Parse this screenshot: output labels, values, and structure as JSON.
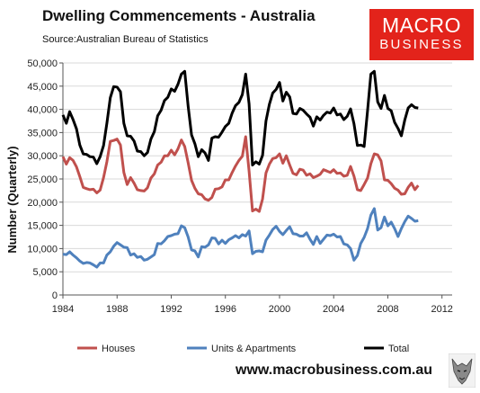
{
  "header": {
    "title": "Dwelling Commencements - Australia",
    "subtitle": "Source:Australian Bureau of Statistics"
  },
  "logo": {
    "line1": "MACRO",
    "line2": "BUSINESS"
  },
  "footer": {
    "url": "www.macrobusiness.com.au"
  },
  "colors": {
    "houses": "#c0504d",
    "units": "#4f81bd",
    "total": "#000000",
    "logo_bg": "#e3231b"
  },
  "chart_data": {
    "type": "line",
    "ylabel": "Number (Quarterly)",
    "xlabel": "",
    "ylim": [
      0,
      50000
    ],
    "xlim": [
      1984,
      2012.75
    ],
    "y_ticks": [
      0,
      5000,
      10000,
      15000,
      20000,
      25000,
      30000,
      35000,
      40000,
      45000,
      50000
    ],
    "y_tick_labels": [
      "0",
      "5,000",
      "10,000",
      "15,000",
      "20,000",
      "25,000",
      "30,000",
      "35,000",
      "40,000",
      "45,000",
      "50,000"
    ],
    "x_ticks": [
      1984,
      1988,
      1992,
      1996,
      2000,
      2004,
      2008,
      2012
    ],
    "x_tick_labels": [
      "1984",
      "1988",
      "1992",
      "1996",
      "2000",
      "2004",
      "2008",
      "2012"
    ],
    "grid": true,
    "legend_position": "bottom",
    "x_start": 1984.0,
    "x_step": 0.25,
    "series": [
      {
        "name": "Houses",
        "values": [
          29800,
          28200,
          29600,
          29000,
          27600,
          25500,
          23200,
          22900,
          22700,
          22800,
          22000,
          22600,
          25300,
          28700,
          33100,
          33300,
          33600,
          32300,
          26400,
          23800,
          25300,
          24100,
          22700,
          22500,
          22400,
          23100,
          25200,
          26100,
          28000,
          28600,
          30000,
          30000,
          31200,
          30200,
          31500,
          33400,
          32000,
          28500,
          24700,
          23000,
          21800,
          21600,
          20700,
          20400,
          21000,
          22800,
          22900,
          23300,
          24800,
          24800,
          26400,
          27800,
          29000,
          29900,
          34100,
          26700,
          18100,
          18500,
          18000,
          20700,
          26300,
          28200,
          29400,
          29600,
          30400,
          28400,
          30000,
          28000,
          26200,
          25900,
          27100,
          26900,
          25800,
          26100,
          25300,
          25600,
          26000,
          27000,
          26700,
          26400,
          27000,
          26200,
          26300,
          25600,
          25800,
          27700,
          25600,
          22700,
          22500,
          23800,
          25200,
          28300,
          30400,
          30200,
          28900,
          24800,
          24700,
          24000,
          23000,
          22600,
          21700,
          21800,
          23200,
          24100,
          22700,
          23600
        ]
      },
      {
        "name": "Units & Apartments",
        "values": [
          8800,
          8700,
          9300,
          8600,
          8000,
          7300,
          6800,
          7000,
          6900,
          6500,
          6000,
          6900,
          6900,
          8600,
          9300,
          10500,
          11300,
          10800,
          10300,
          10200,
          8600,
          8900,
          8100,
          8300,
          7500,
          7700,
          8200,
          8700,
          11100,
          11000,
          11700,
          12600,
          12800,
          13100,
          13200,
          14900,
          14500,
          12500,
          9700,
          9500,
          8200,
          10400,
          10300,
          10800,
          12300,
          12200,
          11000,
          11800,
          11100,
          11900,
          12300,
          12800,
          12300,
          13000,
          12700,
          13800,
          8900,
          9400,
          9500,
          9300,
          11800,
          12900,
          14100,
          14800,
          13700,
          13000,
          13900,
          14700,
          13200,
          13100,
          12700,
          12700,
          13400,
          12000,
          10900,
          12600,
          11100,
          12000,
          12900,
          12800,
          13100,
          12500,
          12600,
          11000,
          10800,
          10000,
          7500,
          8500,
          11100,
          12400,
          14300,
          17200,
          18600,
          14000,
          14500,
          16800,
          14900,
          15700,
          14300,
          12600,
          14300,
          15800,
          17000,
          16500,
          15900,
          16000
        ]
      },
      {
        "name": "Total",
        "values": [
          38800,
          37000,
          39500,
          37800,
          35800,
          32300,
          30400,
          30300,
          29800,
          29700,
          28300,
          29800,
          32200,
          37000,
          42500,
          44900,
          44800,
          43800,
          37000,
          34300,
          34200,
          33200,
          31000,
          30900,
          30000,
          30700,
          33600,
          35200,
          38600,
          39800,
          41900,
          42600,
          44400,
          43900,
          45400,
          47600,
          48200,
          40700,
          34500,
          32600,
          29800,
          31300,
          30600,
          29000,
          33800,
          34100,
          34000,
          35100,
          36300,
          37000,
          39200,
          40800,
          41500,
          43200,
          47600,
          41200,
          28000,
          28700,
          28200,
          30100,
          37500,
          41100,
          43500,
          44300,
          45800,
          41800,
          43700,
          42700,
          39100,
          39000,
          40200,
          39800,
          39000,
          38300,
          36400,
          38400,
          37700,
          38700,
          39400,
          39200,
          40300,
          38800,
          39000,
          37800,
          38500,
          40100,
          36900,
          32200,
          32300,
          32000,
          39700,
          47600,
          48200,
          41600,
          40200,
          43000,
          40200,
          39700,
          37200,
          35900,
          34300,
          37700,
          40300,
          41000,
          40400,
          40300
        ]
      }
    ]
  }
}
